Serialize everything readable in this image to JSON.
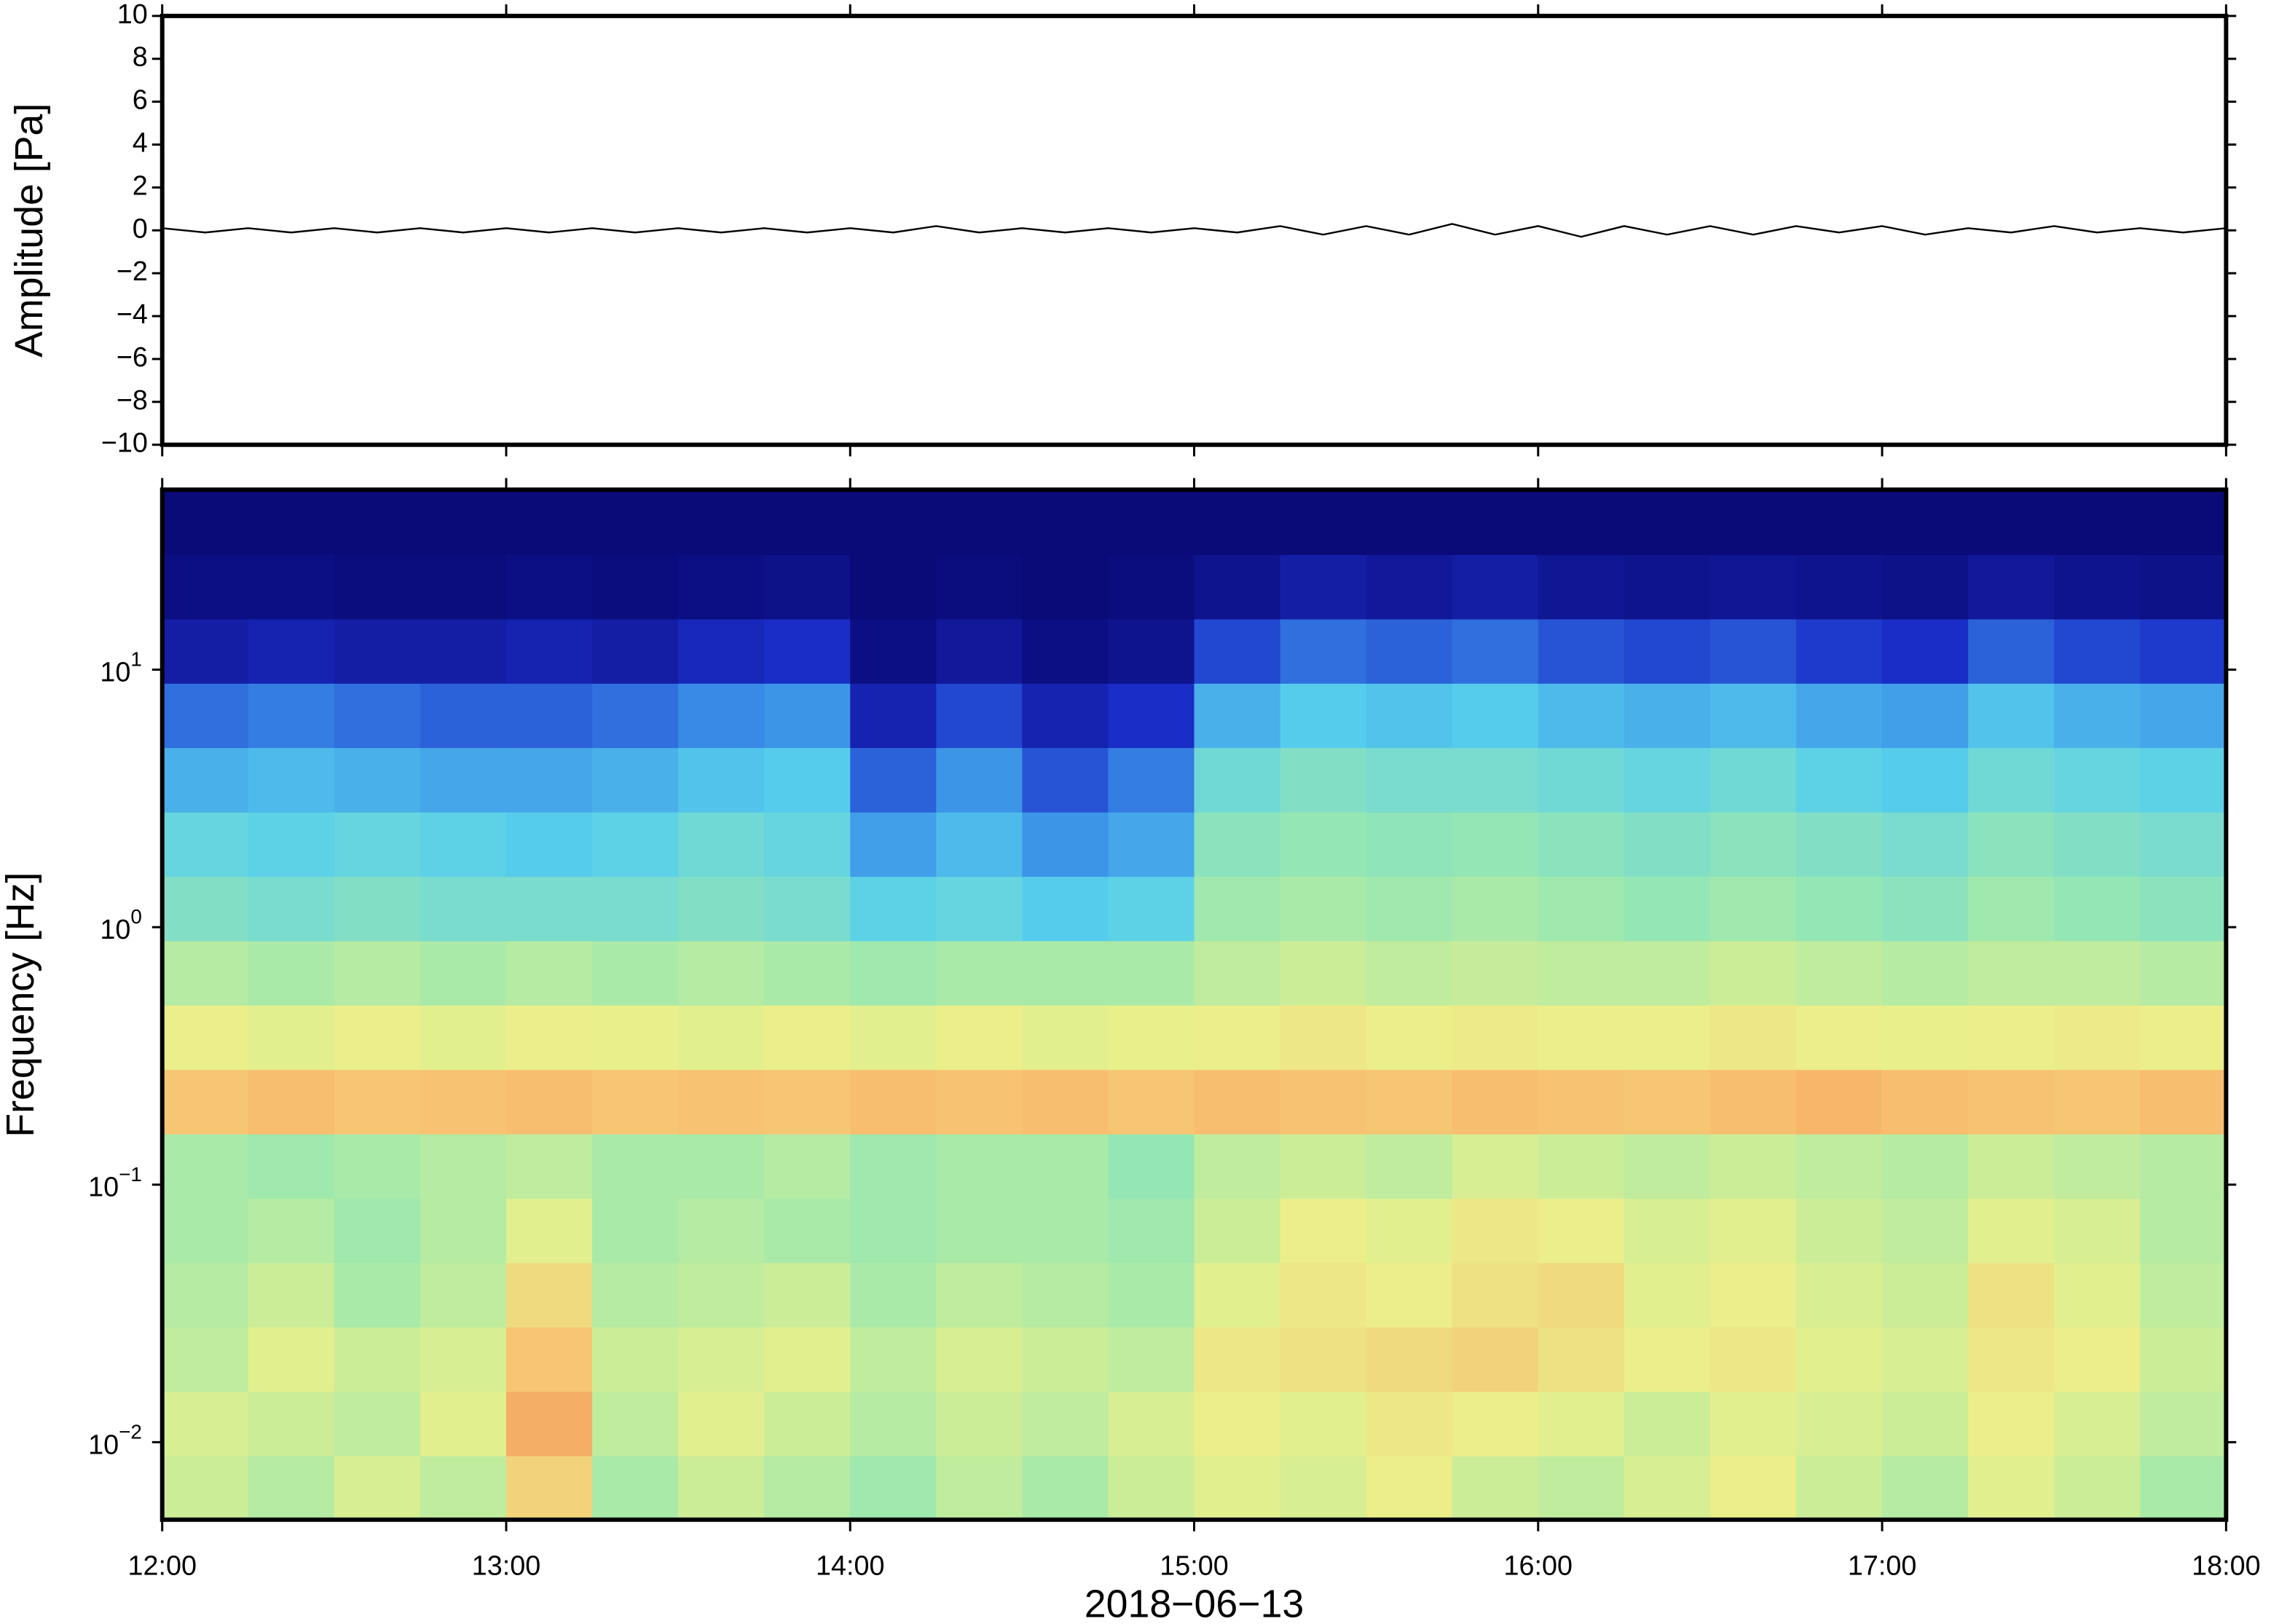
{
  "chart_data": [
    {
      "type": "line",
      "ylabel": "Amplitude [Pa]",
      "xlim": [
        12,
        18
      ],
      "xticks": [
        12,
        13,
        14,
        15,
        16,
        17,
        18
      ],
      "ylim": [
        -10,
        10
      ],
      "yticks": [
        {
          "value": -10,
          "label": "−10"
        },
        {
          "value": -8,
          "label": "−8"
        },
        {
          "value": -6,
          "label": "−6"
        },
        {
          "value": -4,
          "label": "−4"
        },
        {
          "value": -2,
          "label": "−2"
        },
        0,
        2,
        4,
        6,
        8,
        10
      ],
      "series": [
        {
          "color": "#000000",
          "x": [
            12,
            12.125,
            12.25,
            12.375,
            12.5,
            12.625,
            12.75,
            12.875,
            13,
            13.125,
            13.25,
            13.375,
            13.5,
            13.625,
            13.75,
            13.875,
            14,
            14.125,
            14.25,
            14.375,
            14.5,
            14.625,
            14.75,
            14.875,
            15,
            15.125,
            15.25,
            15.375,
            15.5,
            15.625,
            15.75,
            15.875,
            16,
            16.125,
            16.25,
            16.375,
            16.5,
            16.625,
            16.75,
            16.875,
            17,
            17.125,
            17.25,
            17.375,
            17.5,
            17.625,
            17.75,
            17.875,
            18
          ],
          "values": [
            0.1,
            -0.1,
            0.1,
            -0.1,
            0.1,
            -0.1,
            0.1,
            -0.1,
            0.1,
            -0.1,
            0.1,
            -0.1,
            0.1,
            -0.1,
            0.1,
            -0.1,
            0.1,
            -0.1,
            0.2,
            -0.1,
            0.1,
            -0.1,
            0.1,
            -0.1,
            0.1,
            -0.1,
            0.2,
            -0.2,
            0.2,
            -0.2,
            0.3,
            -0.2,
            0.2,
            -0.3,
            0.2,
            -0.2,
            0.2,
            -0.2,
            0.2,
            -0.1,
            0.2,
            -0.2,
            0.1,
            -0.1,
            0.2,
            -0.1,
            0.1,
            -0.1,
            0.1
          ]
        }
      ]
    },
    {
      "type": "heatmap",
      "xlabel": "2018−06−13",
      "ylabel": "Frequency [Hz]",
      "xlim": [
        12,
        18
      ],
      "xticks": [
        {
          "value": 12,
          "label": "12:00"
        },
        {
          "value": 13,
          "label": "13:00"
        },
        {
          "value": 14,
          "label": "14:00"
        },
        {
          "value": 15,
          "label": "15:00"
        },
        {
          "value": 16,
          "label": "16:00"
        },
        {
          "value": 17,
          "label": "17:00"
        },
        {
          "value": 18,
          "label": "18:00"
        }
      ],
      "ylim": [
        0.005,
        50
      ],
      "ylog": true,
      "yticks": [
        {
          "value": 0.01,
          "label": "10",
          "exponent": "−2"
        },
        {
          "value": 0.1,
          "label": "10",
          "exponent": "−1"
        },
        {
          "value": 1,
          "label": "10",
          "exponent": "0"
        },
        {
          "value": 10,
          "label": "10",
          "exponent": "1"
        }
      ],
      "xbins": [
        12,
        12.25,
        12.5,
        12.75,
        13,
        13.25,
        13.5,
        13.75,
        14,
        14.25,
        14.5,
        14.75,
        15,
        15.25,
        15.5,
        15.75,
        16,
        16.25,
        16.5,
        16.75,
        17,
        17.25,
        17.5,
        17.75,
        18
      ],
      "ybins": [
        0.005,
        0.00889,
        0.0158,
        0.0281,
        0.05,
        0.0889,
        0.158,
        0.281,
        0.5,
        0.889,
        1.58,
        2.81,
        5,
        8.89,
        15.8,
        28.1,
        50
      ],
      "zlim": [
        0,
        1
      ],
      "colormap": [
        "#0a0a78",
        "#1a2ec8",
        "#3a8ee8",
        "#58d0ec",
        "#9ae8b0",
        "#eaf08a",
        "#f8c070",
        "#e85030"
      ],
      "z": [
        [
          0.66,
          0.62,
          0.68,
          0.64,
          0.8,
          0.6,
          0.66,
          0.62,
          0.58,
          0.64,
          0.6,
          0.66,
          0.7,
          0.68,
          0.72,
          0.66,
          0.64,
          0.68,
          0.72,
          0.66,
          0.62,
          0.7,
          0.66,
          0.6
        ],
        [
          0.68,
          0.66,
          0.64,
          0.7,
          0.88,
          0.64,
          0.7,
          0.66,
          0.62,
          0.66,
          0.64,
          0.68,
          0.72,
          0.7,
          0.74,
          0.72,
          0.7,
          0.66,
          0.7,
          0.68,
          0.66,
          0.72,
          0.68,
          0.64
        ],
        [
          0.64,
          0.7,
          0.66,
          0.68,
          0.84,
          0.66,
          0.68,
          0.7,
          0.64,
          0.68,
          0.66,
          0.64,
          0.74,
          0.76,
          0.78,
          0.8,
          0.76,
          0.72,
          0.74,
          0.7,
          0.68,
          0.74,
          0.72,
          0.66
        ],
        [
          0.62,
          0.66,
          0.6,
          0.64,
          0.78,
          0.62,
          0.64,
          0.66,
          0.6,
          0.64,
          0.62,
          0.6,
          0.7,
          0.74,
          0.72,
          0.76,
          0.78,
          0.7,
          0.72,
          0.68,
          0.66,
          0.76,
          0.7,
          0.64
        ],
        [
          0.6,
          0.62,
          0.58,
          0.62,
          0.7,
          0.6,
          0.62,
          0.6,
          0.58,
          0.6,
          0.6,
          0.58,
          0.66,
          0.72,
          0.7,
          0.74,
          0.72,
          0.68,
          0.7,
          0.66,
          0.64,
          0.7,
          0.68,
          0.62
        ],
        [
          0.6,
          0.58,
          0.6,
          0.62,
          0.64,
          0.6,
          0.6,
          0.62,
          0.58,
          0.6,
          0.6,
          0.56,
          0.64,
          0.66,
          0.64,
          0.68,
          0.66,
          0.64,
          0.66,
          0.64,
          0.62,
          0.66,
          0.64,
          0.62
        ],
        [
          0.84,
          0.86,
          0.84,
          0.85,
          0.86,
          0.84,
          0.85,
          0.84,
          0.86,
          0.85,
          0.86,
          0.84,
          0.86,
          0.85,
          0.84,
          0.86,
          0.85,
          0.84,
          0.86,
          0.87,
          0.86,
          0.85,
          0.84,
          0.86
        ],
        [
          0.72,
          0.7,
          0.72,
          0.7,
          0.72,
          0.71,
          0.7,
          0.72,
          0.7,
          0.72,
          0.7,
          0.71,
          0.72,
          0.74,
          0.72,
          0.73,
          0.72,
          0.72,
          0.74,
          0.72,
          0.71,
          0.72,
          0.73,
          0.72
        ],
        [
          0.62,
          0.6,
          0.62,
          0.6,
          0.62,
          0.6,
          0.62,
          0.6,
          0.58,
          0.6,
          0.6,
          0.6,
          0.64,
          0.66,
          0.64,
          0.65,
          0.64,
          0.64,
          0.66,
          0.64,
          0.62,
          0.64,
          0.64,
          0.62
        ],
        [
          0.52,
          0.5,
          0.52,
          0.5,
          0.5,
          0.5,
          0.52,
          0.5,
          0.44,
          0.46,
          0.42,
          0.44,
          0.58,
          0.6,
          0.58,
          0.6,
          0.58,
          0.56,
          0.58,
          0.56,
          0.54,
          0.58,
          0.56,
          0.54
        ],
        [
          0.46,
          0.44,
          0.46,
          0.44,
          0.42,
          0.44,
          0.48,
          0.46,
          0.32,
          0.38,
          0.3,
          0.34,
          0.54,
          0.56,
          0.55,
          0.56,
          0.54,
          0.52,
          0.54,
          0.52,
          0.5,
          0.54,
          0.52,
          0.5
        ],
        [
          0.36,
          0.38,
          0.36,
          0.34,
          0.34,
          0.36,
          0.4,
          0.42,
          0.22,
          0.3,
          0.2,
          0.26,
          0.48,
          0.52,
          0.5,
          0.5,
          0.48,
          0.46,
          0.48,
          0.44,
          0.42,
          0.48,
          0.46,
          0.44
        ],
        [
          0.24,
          0.26,
          0.24,
          0.22,
          0.22,
          0.24,
          0.28,
          0.3,
          0.1,
          0.18,
          0.1,
          0.14,
          0.36,
          0.42,
          0.4,
          0.42,
          0.38,
          0.36,
          0.38,
          0.34,
          0.32,
          0.4,
          0.36,
          0.34
        ],
        [
          0.08,
          0.1,
          0.08,
          0.08,
          0.1,
          0.08,
          0.12,
          0.14,
          0.02,
          0.06,
          0.02,
          0.04,
          0.18,
          0.24,
          0.22,
          0.24,
          0.2,
          0.18,
          0.2,
          0.16,
          0.14,
          0.22,
          0.18,
          0.16
        ],
        [
          0.02,
          0.02,
          0.01,
          0.01,
          0.02,
          0.01,
          0.02,
          0.03,
          0,
          0.01,
          0,
          0.01,
          0.04,
          0.08,
          0.06,
          0.08,
          0.05,
          0.04,
          0.05,
          0.04,
          0.03,
          0.06,
          0.04,
          0.03
        ],
        [
          0,
          0,
          0,
          0,
          0,
          0,
          0,
          0,
          0,
          0,
          0,
          0,
          0,
          0,
          0,
          0,
          0,
          0,
          0,
          0,
          0,
          0,
          0,
          0
        ]
      ]
    }
  ]
}
